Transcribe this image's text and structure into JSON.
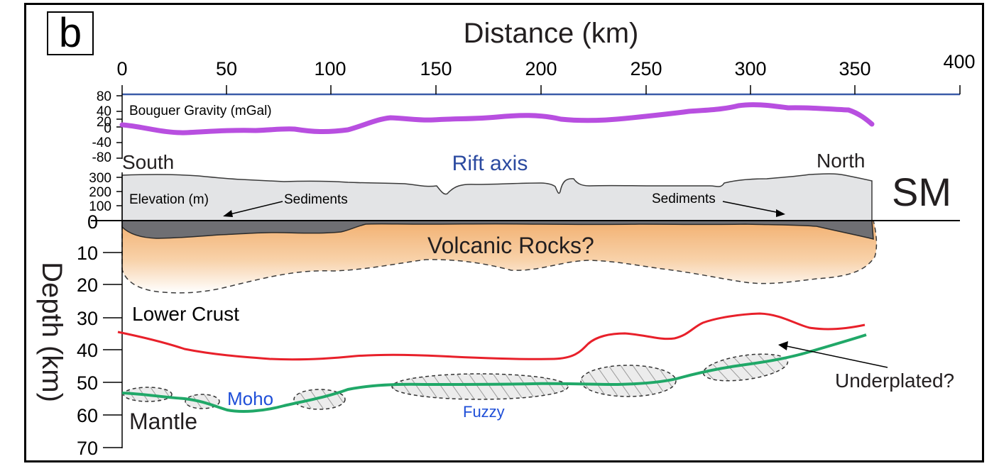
{
  "panel_label": "b",
  "top_axis": {
    "title": "Distance (km)",
    "ticks": [
      "0",
      "50",
      "100",
      "150",
      "200",
      "250",
      "300",
      "350",
      "400"
    ],
    "range": [
      0,
      400
    ]
  },
  "gravity": {
    "label": "Bouguer Gravity (mGal)",
    "ticks": [
      "80",
      "40",
      "20",
      "0",
      "-40",
      "-80"
    ]
  },
  "elevation": {
    "label": "Elevation (m)",
    "ticks": [
      "300",
      "200",
      "100"
    ]
  },
  "depth_axis": {
    "title": "Depth (km)",
    "ticks": [
      "0",
      "10",
      "20",
      "30",
      "40",
      "50",
      "60",
      "70"
    ],
    "range": [
      0,
      70
    ]
  },
  "labels": {
    "south": "South",
    "north": "North",
    "rift_axis": "Rift axis",
    "sm": "SM",
    "sediments_left": "Sediments",
    "sediments_right": "Sediments",
    "volcanic": "Volcanic Rocks?",
    "lower_crust": "Lower Crust",
    "moho": "Moho",
    "mantle": "Mantle",
    "fuzzy": "Fuzzy",
    "underplated": "Underplated?"
  },
  "colors": {
    "gravity_line": "#b84fe0",
    "top_axis_line": "#3a5ba8",
    "rift_axis_text": "#2b4aa0",
    "moho_text": "#1f4fd8",
    "lower_crust_line": "#e8202a",
    "moho_line": "#20a868",
    "volcanic_fill": "#f4b97a",
    "sediment_fill": "#6f6f73",
    "elevation_fill": "#e3e4e6"
  }
}
